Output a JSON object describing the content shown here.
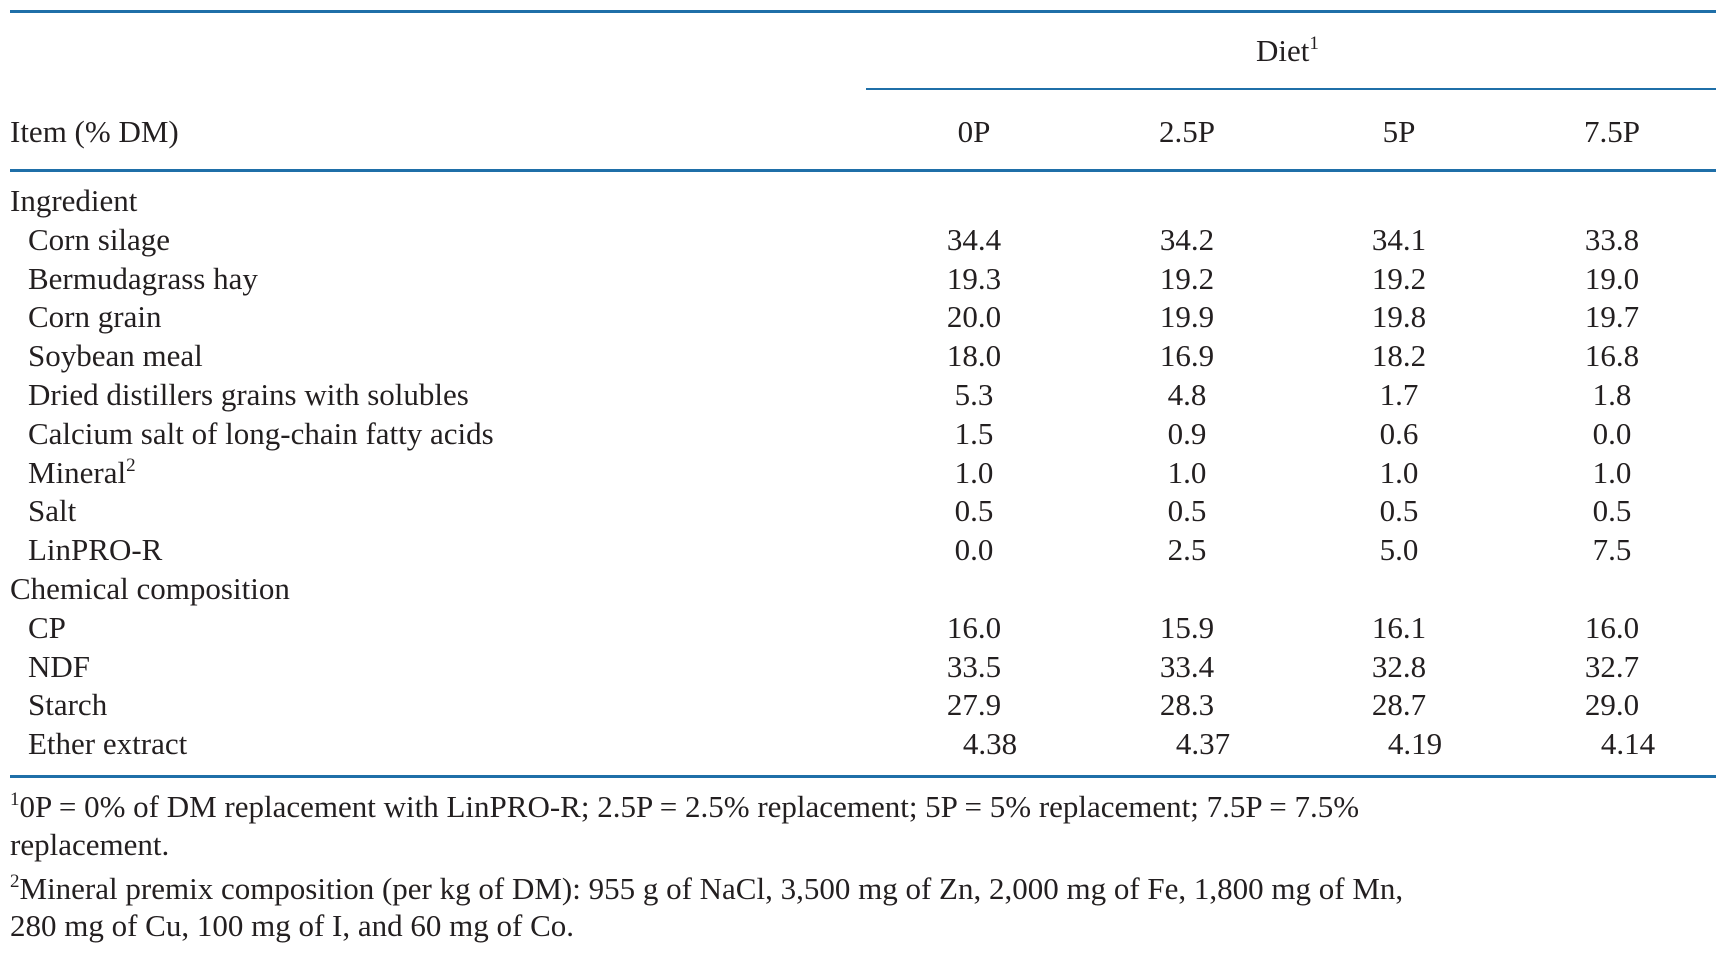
{
  "header": {
    "spanner": "Diet",
    "spanner_sup": "1",
    "stub": "Item (% DM)",
    "columns": [
      "0P",
      "2.5P",
      "5P",
      "7.5P"
    ]
  },
  "sections": [
    {
      "label": "Ingredient",
      "rows": [
        {
          "item": "Corn silage",
          "values": [
            "34.4",
            "34.2",
            "34.1",
            "33.8"
          ]
        },
        {
          "item": "Bermudagrass hay",
          "values": [
            "19.3",
            "19.2",
            "19.2",
            "19.0"
          ]
        },
        {
          "item": "Corn grain",
          "values": [
            "20.0",
            "19.9",
            "19.8",
            "19.7"
          ]
        },
        {
          "item": "Soybean meal",
          "values": [
            "18.0",
            "16.9",
            "18.2",
            "16.8"
          ]
        },
        {
          "item": "Dried distillers grains with solubles",
          "values": [
            "5.3",
            "4.8",
            "1.7",
            "1.8"
          ]
        },
        {
          "item": "Calcium salt of long-chain fatty acids",
          "values": [
            "1.5",
            "0.9",
            "0.6",
            "0.0"
          ]
        },
        {
          "item": "Mineral",
          "sup": "2",
          "values": [
            "1.0",
            "1.0",
            "1.0",
            "1.0"
          ]
        },
        {
          "item": "Salt",
          "values": [
            "0.5",
            "0.5",
            "0.5",
            "0.5"
          ]
        },
        {
          "item": "LinPRO-R",
          "values": [
            "0.0",
            "2.5",
            "5.0",
            "7.5"
          ]
        }
      ]
    },
    {
      "label": "Chemical composition",
      "rows": [
        {
          "item": "CP",
          "values": [
            "16.0",
            "15.9",
            "16.1",
            "16.0"
          ]
        },
        {
          "item": "NDF",
          "values": [
            "33.5",
            "33.4",
            "32.8",
            "32.7"
          ]
        },
        {
          "item": "Starch",
          "values": [
            "27.9",
            "28.3",
            "28.7",
            "29.0"
          ]
        },
        {
          "item": "Ether extract",
          "values": [
            "4.38",
            "4.37",
            "4.19",
            "4.14"
          ]
        }
      ]
    }
  ],
  "footnotes": [
    {
      "mark": "1",
      "lines": [
        "0P = 0% of DM replacement with LinPRO-R; 2.5P = 2.5% replacement; 5P = 5% replacement; 7.5P = 7.5%",
        "replacement."
      ]
    },
    {
      "mark": "2",
      "lines": [
        "Mineral premix composition (per kg of DM): 955 g of NaCl, 3,500 mg of Zn, 2,000 mg of Fe, 1,800 mg of Mn,",
        "280 mg of Cu, 100 mg of I, and 60 mg of Co."
      ]
    }
  ],
  "colors": {
    "rule": "#1f6fa8",
    "text": "#231f20"
  }
}
